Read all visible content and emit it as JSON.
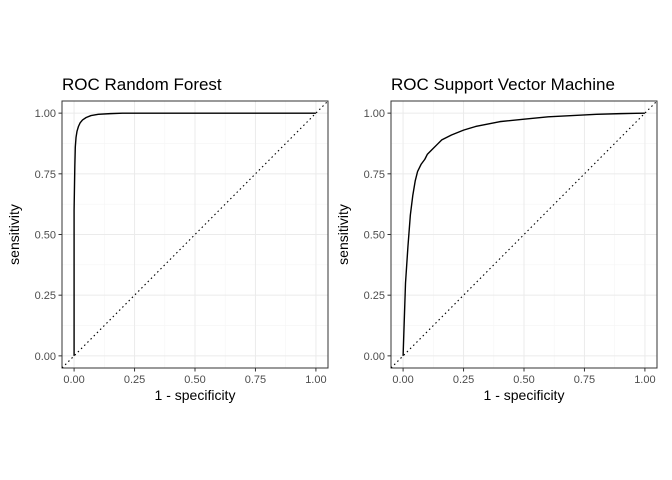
{
  "chart_data": [
    {
      "type": "line",
      "title": "ROC Random Forest",
      "xlabel": "1 - specificity",
      "ylabel": "sensitivity",
      "xlim": [
        0,
        1
      ],
      "ylim": [
        0,
        1
      ],
      "x_ticks": [
        0,
        0.25,
        0.5,
        0.75,
        1
      ],
      "y_ticks": [
        0,
        0.25,
        0.5,
        0.75,
        1
      ],
      "x_tick_labels": [
        "0.00",
        "0.25",
        "0.50",
        "0.75",
        "1.00"
      ],
      "y_tick_labels": [
        "0.00",
        "0.25",
        "0.50",
        "0.75",
        "1.00"
      ],
      "grid": true,
      "reference_line": "diagonal-dotted",
      "series": [
        {
          "x": [
            0,
            0,
            0.003,
            0.005,
            0.008,
            0.012,
            0.018,
            0.025,
            0.035,
            0.05,
            0.07,
            0.1,
            0.15,
            0.2,
            0.3,
            0.5,
            0.75,
            1
          ],
          "y": [
            0,
            0.6,
            0.78,
            0.86,
            0.9,
            0.925,
            0.945,
            0.96,
            0.972,
            0.982,
            0.99,
            0.995,
            0.998,
            1,
            1,
            1,
            1,
            1
          ]
        }
      ]
    },
    {
      "type": "line",
      "title": "ROC Support Vector Machine",
      "xlabel": "1 - specificity",
      "ylabel": "sensitivity",
      "xlim": [
        0,
        1
      ],
      "ylim": [
        0,
        1
      ],
      "x_ticks": [
        0,
        0.25,
        0.5,
        0.75,
        1
      ],
      "y_ticks": [
        0,
        0.25,
        0.5,
        0.75,
        1
      ],
      "x_tick_labels": [
        "0.00",
        "0.25",
        "0.50",
        "0.75",
        "1.00"
      ],
      "y_tick_labels": [
        "0.00",
        "0.25",
        "0.50",
        "0.75",
        "1.00"
      ],
      "grid": true,
      "reference_line": "diagonal-dotted",
      "series": [
        {
          "x": [
            0,
            0.005,
            0.01,
            0.02,
            0.03,
            0.04,
            0.05,
            0.06,
            0.075,
            0.09,
            0.1,
            0.12,
            0.14,
            0.16,
            0.2,
            0.25,
            0.3,
            0.35,
            0.4,
            0.5,
            0.6,
            0.7,
            0.8,
            0.9,
            1
          ],
          "y": [
            0,
            0.15,
            0.3,
            0.45,
            0.58,
            0.66,
            0.72,
            0.76,
            0.79,
            0.81,
            0.83,
            0.85,
            0.87,
            0.89,
            0.91,
            0.93,
            0.945,
            0.955,
            0.965,
            0.975,
            0.985,
            0.99,
            0.995,
            0.998,
            1
          ]
        }
      ]
    }
  ]
}
